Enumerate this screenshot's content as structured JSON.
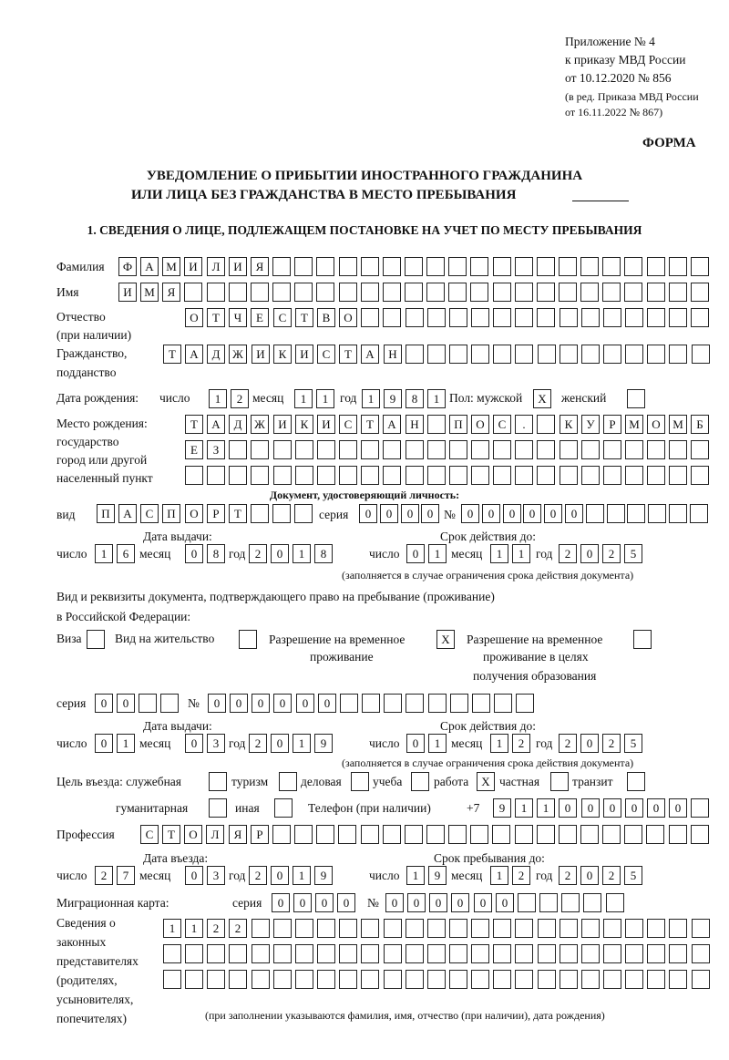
{
  "header": {
    "annex": [
      "Приложение № 4",
      "к приказу МВД России",
      "от 10.12.2020 № 856",
      "(в ред. Приказа МВД России",
      "от 16.11.2022 № 867)"
    ],
    "form_label": "ФОРМА",
    "title_line1": "УВЕДОМЛЕНИЕ О ПРИБЫТИИ ИНОСТРАННОГО ГРАЖДАНИНА",
    "title_line2": "ИЛИ ЛИЦА БЕЗ ГРАЖДАНСТВА В МЕСТО ПРЕБЫВАНИЯ",
    "section1": "1. СВЕДЕНИЯ О ЛИЦЕ, ПОДЛЕЖАЩЕМ ПОСТАНОВКЕ НА УЧЕТ ПО МЕСТУ ПРЕБЫВАНИЯ"
  },
  "labels": {
    "surname": "Фамилия",
    "name": "Имя",
    "patronymic": "Отчество",
    "patronymic_note": "(при наличии)",
    "citizenship1": "Гражданство,",
    "citizenship2": "подданство",
    "birth_date": "Дата рождения:",
    "day": "число",
    "month": "месяц",
    "year": "год",
    "sex_male": "Пол: мужской",
    "sex_female": "женский",
    "birthplace": [
      "Место рождения:",
      "государство",
      "город или другой",
      "населенный пункт"
    ],
    "id_doc": "Документ, удостоверяющий личность:",
    "kind": "вид",
    "series": "серия",
    "number": "№",
    "issue_date": "Дата выдачи:",
    "valid_until": "Срок действия до:",
    "validity_note": "(заполняется в случае ограничения срока действия документа)",
    "stay_doc1": "Вид и реквизиты документа, подтверждающего право на пребывание (проживание)",
    "stay_doc2": "в Российской Федерации:",
    "visa": "Виза",
    "residence": "Вид на жительство",
    "temp_res1": "Разрешение на временное",
    "temp_res2": "проживание",
    "temp_edu1": "Разрешение на временное",
    "temp_edu2": "проживание в целях",
    "temp_edu3": "получения образования",
    "purpose": "Цель въезда: служебная",
    "tourism": "туризм",
    "business": "деловая",
    "study": "учеба",
    "work": "работа",
    "private": "частная",
    "transit": "транзит",
    "humanitarian": "гуманитарная",
    "other": "иная",
    "phone": "Телефон (при наличии)",
    "phone_prefix": "+7",
    "profession": "Профессия",
    "entry_date": "Дата въезда:",
    "stay_until": "Срок пребывания до:",
    "migration_card": "Миграционная карта:",
    "legal_reps": [
      "Сведения о",
      "законных",
      "представителях",
      "(родителях,",
      "усыновителях,",
      "попечителях)"
    ],
    "legal_note": "(при заполнении указываются фамилия, имя, отчество (при наличии), дата рождения)"
  },
  "fields": {
    "surname": [
      "Ф",
      "А",
      "М",
      "И",
      "Л",
      "И",
      "Я"
    ],
    "name": [
      "И",
      "М",
      "Я"
    ],
    "patronymic": [
      "О",
      "Т",
      "Ч",
      "Е",
      "С",
      "Т",
      "В",
      "О"
    ],
    "citizenship": [
      "Т",
      "А",
      "Д",
      "Ж",
      "И",
      "К",
      "И",
      "С",
      "Т",
      "А",
      "Н"
    ],
    "birth_day": [
      "1",
      "2"
    ],
    "birth_month": [
      "1",
      "1"
    ],
    "birth_year": [
      "1",
      "9",
      "8",
      "1"
    ],
    "sex_male": "X",
    "sex_female": "",
    "birthplace_row1": [
      "Т",
      "А",
      "Д",
      "Ж",
      "И",
      "К",
      "И",
      "С",
      "Т",
      "А",
      "Н",
      "",
      "П",
      "О",
      "С",
      ".",
      "",
      "К",
      "У",
      "Р",
      "М",
      "О",
      "М",
      "Б"
    ],
    "birthplace_row2": [
      "Е",
      "З"
    ],
    "birthplace_row3": [],
    "id_kind": [
      "П",
      "А",
      "С",
      "П",
      "О",
      "Р",
      "Т"
    ],
    "id_series": [
      "0",
      "0",
      "0",
      "0"
    ],
    "id_number": [
      "0",
      "0",
      "0",
      "0",
      "0",
      "0"
    ],
    "id_issue_day": [
      "1",
      "6"
    ],
    "id_issue_month": [
      "0",
      "8"
    ],
    "id_issue_year": [
      "2",
      "0",
      "1",
      "8"
    ],
    "id_valid_day": [
      "0",
      "1"
    ],
    "id_valid_month": [
      "1",
      "1"
    ],
    "id_valid_year": [
      "2",
      "0",
      "2",
      "5"
    ],
    "stay_visa": "",
    "stay_residence": "",
    "stay_temp_res": "X",
    "stay_temp_edu": "",
    "stay_series": [
      "0",
      "0"
    ],
    "stay_number": [
      "0",
      "0",
      "0",
      "0",
      "0",
      "0"
    ],
    "stay_issue_day": [
      "0",
      "1"
    ],
    "stay_issue_month": [
      "0",
      "3"
    ],
    "stay_issue_year": [
      "2",
      "0",
      "1",
      "9"
    ],
    "stay_valid_day": [
      "0",
      "1"
    ],
    "stay_valid_month": [
      "1",
      "2"
    ],
    "stay_valid_year": [
      "2",
      "0",
      "2",
      "5"
    ],
    "purpose_official": "",
    "purpose_tourism": "",
    "purpose_business": "",
    "purpose_study": "",
    "purpose_work": "X",
    "purpose_private": "",
    "purpose_transit": "",
    "purpose_humanitarian": "",
    "purpose_other": "",
    "phone": [
      "9",
      "1",
      "1",
      "0",
      "0",
      "0",
      "0",
      "0",
      "0"
    ],
    "profession": [
      "С",
      "Т",
      "О",
      "Л",
      "Я",
      "Р"
    ],
    "entry_day": [
      "2",
      "7"
    ],
    "entry_month": [
      "0",
      "3"
    ],
    "entry_year": [
      "2",
      "0",
      "1",
      "9"
    ],
    "stay_until_day": [
      "1",
      "9"
    ],
    "stay_until_month": [
      "1",
      "2"
    ],
    "stay_until_year": [
      "2",
      "0",
      "2",
      "5"
    ],
    "migration_series": [
      "0",
      "0",
      "0",
      "0"
    ],
    "migration_number": [
      "0",
      "0",
      "0",
      "0",
      "0",
      "0"
    ],
    "legal_row1": [
      "1",
      "1",
      "2",
      "2"
    ],
    "legal_row2": [],
    "legal_row3": []
  }
}
